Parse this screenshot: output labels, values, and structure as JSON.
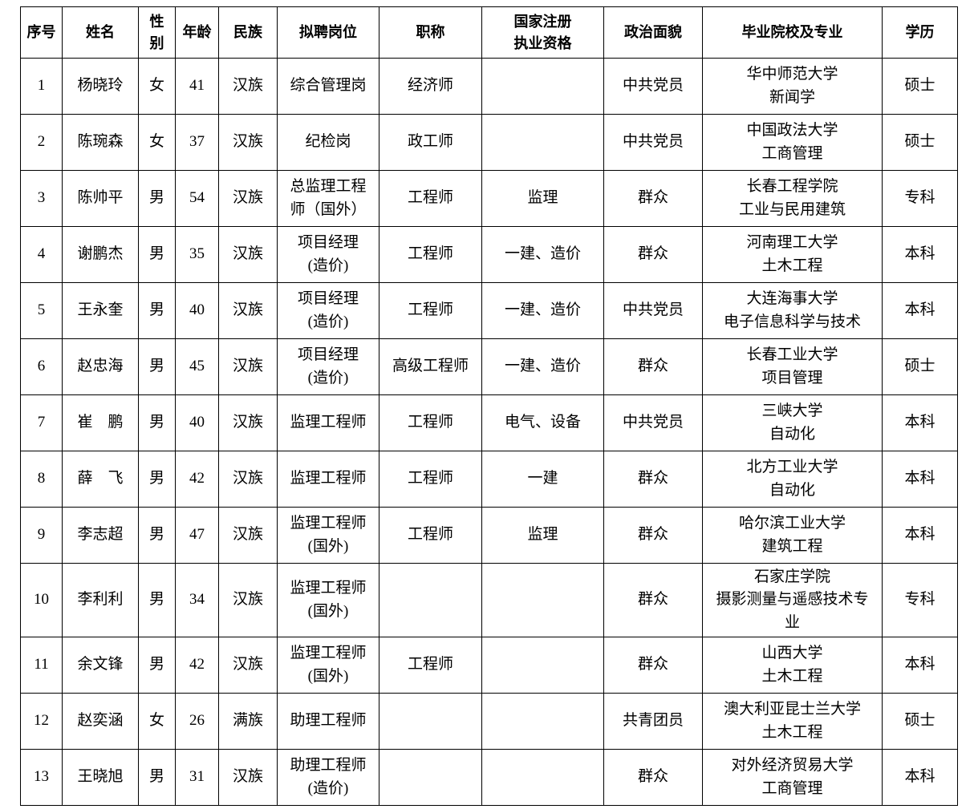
{
  "colors": {
    "background": "#ffffff",
    "border": "#000000",
    "text": "#000000"
  },
  "table": {
    "headers": [
      "序号",
      "姓名",
      "性别",
      "年龄",
      "民族",
      "拟聘岗位",
      "职称",
      "国家注册\n执业资格",
      "政治面貌",
      "毕业院校及专业",
      "学历"
    ],
    "rows": [
      [
        "1",
        "杨晓玲",
        "女",
        "41",
        "汉族",
        "综合管理岗",
        "经济师",
        "",
        "中共党员",
        "华中师范大学\n新闻学",
        "硕士"
      ],
      [
        "2",
        "陈琬森",
        "女",
        "37",
        "汉族",
        "纪检岗",
        "政工师",
        "",
        "中共党员",
        "中国政法大学\n工商管理",
        "硕士"
      ],
      [
        "3",
        "陈帅平",
        "男",
        "54",
        "汉族",
        "总监理工程\n师（国外）",
        "工程师",
        "监理",
        "群众",
        "长春工程学院\n工业与民用建筑",
        "专科"
      ],
      [
        "4",
        "谢鹏杰",
        "男",
        "35",
        "汉族",
        "项目经理\n(造价)",
        "工程师",
        "一建、造价",
        "群众",
        "河南理工大学\n土木工程",
        "本科"
      ],
      [
        "5",
        "王永奎",
        "男",
        "40",
        "汉族",
        "项目经理\n(造价)",
        "工程师",
        "一建、造价",
        "中共党员",
        "大连海事大学\n电子信息科学与技术",
        "本科"
      ],
      [
        "6",
        "赵忠海",
        "男",
        "45",
        "汉族",
        "项目经理\n(造价)",
        "高级工程师",
        "一建、造价",
        "群众",
        "长春工业大学\n项目管理",
        "硕士"
      ],
      [
        "7",
        "崔　鹏",
        "男",
        "40",
        "汉族",
        "监理工程师",
        "工程师",
        "电气、设备",
        "中共党员",
        "三峡大学\n自动化",
        "本科"
      ],
      [
        "8",
        "薛　飞",
        "男",
        "42",
        "汉族",
        "监理工程师",
        "工程师",
        "一建",
        "群众",
        "北方工业大学\n自动化",
        "本科"
      ],
      [
        "9",
        "李志超",
        "男",
        "47",
        "汉族",
        "监理工程师\n(国外)",
        "工程师",
        "监理",
        "群众",
        "哈尔滨工业大学\n建筑工程",
        "本科"
      ],
      [
        "10",
        "李利利",
        "男",
        "34",
        "汉族",
        "监理工程师\n(国外)",
        "",
        "",
        "群众",
        "石家庄学院\n摄影测量与遥感技术专\n业",
        "专科"
      ],
      [
        "11",
        "余文锋",
        "男",
        "42",
        "汉族",
        "监理工程师\n(国外)",
        "工程师",
        "",
        "群众",
        "山西大学\n土木工程",
        "本科"
      ],
      [
        "12",
        "赵奕涵",
        "女",
        "26",
        "满族",
        "助理工程师",
        "",
        "",
        "共青团员",
        "澳大利亚昆士兰大学\n土木工程",
        "硕士"
      ],
      [
        "13",
        "王晓旭",
        "男",
        "31",
        "汉族",
        "助理工程师\n(造价)",
        "",
        "",
        "群众",
        "对外经济贸易大学\n工商管理",
        "本科"
      ]
    ]
  }
}
